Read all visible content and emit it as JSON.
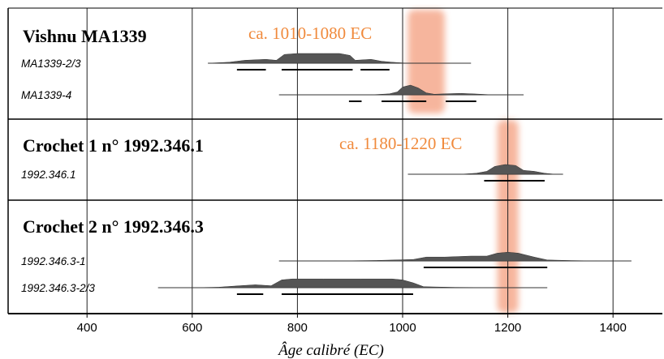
{
  "chart_data": {
    "type": "range",
    "xlabel": "Âge calibré (EC)",
    "xlim": [
      250,
      1500
    ],
    "xticks": [
      400,
      600,
      800,
      1000,
      1200,
      1400
    ],
    "grid": true,
    "colors": {
      "highlight": "#f5a98c",
      "highlight_text": "#f08a3c",
      "distribution": "#555555"
    },
    "highlights": [
      {
        "label": "ca. 1010-1080 EC",
        "from": 1010,
        "to": 1080
      },
      {
        "label": "ca. 1180-1220 EC",
        "from": 1180,
        "to": 1220
      }
    ],
    "panels": [
      {
        "title": "Vishnu MA1339",
        "samples": [
          {
            "label": "MA1339-2/3",
            "range": [
              630,
              1130
            ],
            "bars": [
              [
                685,
                740
              ],
              [
                770,
                905
              ],
              [
                920,
                975
              ]
            ],
            "density": [
              [
                630,
                0
              ],
              [
                670,
                1
              ],
              [
                700,
                3
              ],
              [
                740,
                4
              ],
              [
                760,
                3
              ],
              [
                775,
                9
              ],
              [
                800,
                10
              ],
              [
                850,
                10
              ],
              [
                880,
                10
              ],
              [
                900,
                8
              ],
              [
                910,
                3
              ],
              [
                940,
                4
              ],
              [
                960,
                2
              ],
              [
                980,
                1
              ],
              [
                1010,
                0
              ]
            ]
          },
          {
            "label": "MA1339-4",
            "range": [
              765,
              1230
            ],
            "bars": [
              [
                898,
                922
              ],
              [
                960,
                1045
              ],
              [
                1082,
                1140
              ]
            ],
            "density": [
              [
                940,
                0
              ],
              [
                975,
                1
              ],
              [
                990,
                3
              ],
              [
                1000,
                8
              ],
              [
                1015,
                10
              ],
              [
                1030,
                7
              ],
              [
                1045,
                2
              ],
              [
                1060,
                0.6
              ],
              [
                1080,
                1
              ],
              [
                1110,
                1.5
              ],
              [
                1140,
                0.8
              ],
              [
                1170,
                0
              ]
            ]
          }
        ]
      },
      {
        "title": "Crochet 1 n° 1992.346.1",
        "samples": [
          {
            "label": "1992.346.1",
            "range": [
              1010,
              1305
            ],
            "bars": [
              [
                1155,
                1270
              ]
            ],
            "density": [
              [
                1110,
                0
              ],
              [
                1140,
                1
              ],
              [
                1160,
                3
              ],
              [
                1175,
                8
              ],
              [
                1195,
                10
              ],
              [
                1215,
                9
              ],
              [
                1230,
                4
              ],
              [
                1250,
                3
              ],
              [
                1270,
                1
              ],
              [
                1290,
                0
              ]
            ]
          }
        ]
      },
      {
        "title": "Crochet 2 n° 1992.346.3",
        "samples": [
          {
            "label": "1992.346.3-1",
            "range": [
              765,
              1435
            ],
            "bars": [
              [
                1040,
                1275
              ]
            ],
            "density": [
              [
                870,
                0
              ],
              [
                950,
                0.5
              ],
              [
                1020,
                1.5
              ],
              [
                1045,
                4
              ],
              [
                1080,
                4
              ],
              [
                1130,
                5
              ],
              [
                1160,
                5
              ],
              [
                1180,
                8
              ],
              [
                1200,
                9
              ],
              [
                1220,
                8
              ],
              [
                1250,
                4
              ],
              [
                1275,
                1
              ],
              [
                1320,
                0.4
              ],
              [
                1370,
                0
              ]
            ]
          },
          {
            "label": "1992.346.3-2/3",
            "range": [
              535,
              1275
            ],
            "bars": [
              [
                685,
                735
              ],
              [
                770,
                1020
              ]
            ],
            "density": [
              [
                600,
                0
              ],
              [
                650,
                0.5
              ],
              [
                690,
                2
              ],
              [
                720,
                3
              ],
              [
                750,
                2
              ],
              [
                770,
                8
              ],
              [
                790,
                9
              ],
              [
                850,
                9
              ],
              [
                920,
                9
              ],
              [
                980,
                9
              ],
              [
                1000,
                8
              ],
              [
                1020,
                5
              ],
              [
                1040,
                1
              ],
              [
                1100,
                0.3
              ],
              [
                1200,
                0
              ]
            ]
          }
        ]
      }
    ]
  }
}
